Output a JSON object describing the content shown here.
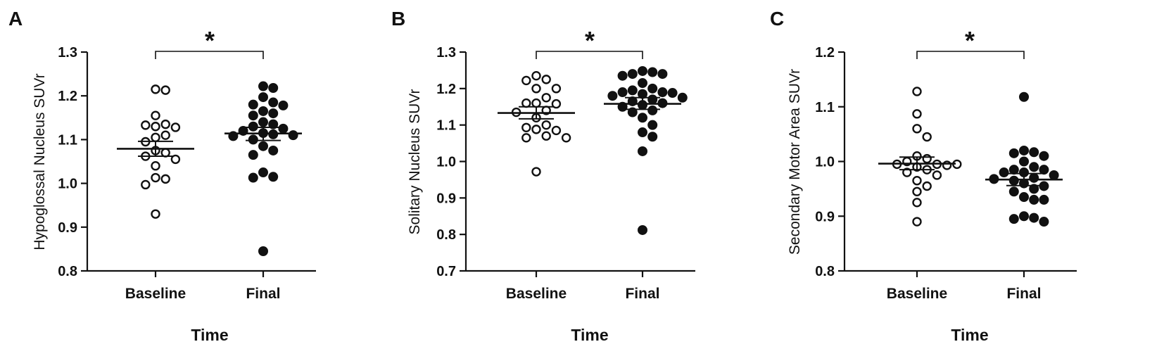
{
  "figure": {
    "panels": [
      {
        "letter": "A",
        "ylabel": "Hypoglossal Nucleus SUVr",
        "xlabel": "Time",
        "significance": "*"
      },
      {
        "letter": "B",
        "ylabel": "Solitary Nucleus SUVr",
        "xlabel": "Time",
        "significance": "*"
      },
      {
        "letter": "C",
        "ylabel": "Secondary Motor Area SUVr",
        "xlabel": "Time",
        "significance": "*"
      }
    ]
  },
  "chart_data": [
    {
      "type": "scatter",
      "title": "",
      "panel_label": "A",
      "xlabel": "Time",
      "ylabel": "Hypoglossal Nucleus SUVr",
      "categories": [
        "Baseline",
        "Final"
      ],
      "ylim": [
        0.8,
        1.3
      ],
      "yticks": [
        "0.8",
        "0.9",
        "1.0",
        "1.1",
        "1.2",
        "1.3"
      ],
      "grid": false,
      "significance": {
        "label": "*",
        "between": [
          "Baseline",
          "Final"
        ]
      },
      "series": [
        {
          "category": "Baseline",
          "marker": "open-circle",
          "mean": 1.079,
          "sem_low": 1.062,
          "sem_high": 1.096,
          "values": [
            1.215,
            1.213,
            1.155,
            1.135,
            1.133,
            1.13,
            1.128,
            1.11,
            1.105,
            1.095,
            1.075,
            1.07,
            1.062,
            1.055,
            1.04,
            1.013,
            1.01,
            0.997,
            0.93
          ]
        },
        {
          "category": "Final",
          "marker": "filled-circle",
          "mean": 1.114,
          "sem_low": 1.098,
          "sem_high": 1.128,
          "values": [
            1.222,
            1.218,
            1.197,
            1.185,
            1.18,
            1.178,
            1.165,
            1.16,
            1.155,
            1.14,
            1.135,
            1.13,
            1.125,
            1.12,
            1.115,
            1.112,
            1.11,
            1.108,
            1.1,
            1.085,
            1.075,
            1.065,
            1.025,
            1.015,
            1.013,
            0.845
          ]
        }
      ]
    },
    {
      "type": "scatter",
      "title": "",
      "panel_label": "B",
      "xlabel": "Time",
      "ylabel": "Solitary Nucleus SUVr",
      "categories": [
        "Baseline",
        "Final"
      ],
      "ylim": [
        0.7,
        1.3
      ],
      "yticks": [
        "0.7",
        "0.8",
        "0.9",
        "1.0",
        "1.1",
        "1.2",
        "1.3"
      ],
      "grid": false,
      "significance": {
        "label": "*",
        "between": [
          "Baseline",
          "Final"
        ]
      },
      "series": [
        {
          "category": "Baseline",
          "marker": "open-circle",
          "mean": 1.133,
          "sem_low": 1.117,
          "sem_high": 1.15,
          "values": [
            1.235,
            1.225,
            1.222,
            1.2,
            1.2,
            1.175,
            1.16,
            1.158,
            1.16,
            1.14,
            1.135,
            1.12,
            1.1,
            1.093,
            1.085,
            1.088,
            1.07,
            1.065,
            1.065,
            0.972
          ]
        },
        {
          "category": "Final",
          "marker": "filled-circle",
          "mean": 1.158,
          "sem_low": 1.143,
          "sem_high": 1.175,
          "values": [
            1.245,
            1.248,
            1.24,
            1.24,
            1.235,
            1.215,
            1.2,
            1.195,
            1.19,
            1.19,
            1.188,
            1.185,
            1.175,
            1.18,
            1.17,
            1.165,
            1.16,
            1.155,
            1.15,
            1.14,
            1.135,
            1.12,
            1.1,
            1.08,
            1.068,
            1.028,
            0.812
          ]
        }
      ]
    },
    {
      "type": "scatter",
      "title": "",
      "panel_label": "C",
      "xlabel": "Time",
      "ylabel": "Secondary Motor Area SUVr",
      "categories": [
        "Baseline",
        "Final"
      ],
      "ylim": [
        0.8,
        1.2
      ],
      "yticks": [
        "0.8",
        "0.9",
        "1.0",
        "1.1",
        "1.2"
      ],
      "grid": false,
      "significance": {
        "label": "*",
        "between": [
          "Baseline",
          "Final"
        ]
      },
      "series": [
        {
          "category": "Baseline",
          "marker": "open-circle",
          "mean": 0.996,
          "sem_low": 0.985,
          "sem_high": 1.008,
          "values": [
            1.128,
            1.087,
            1.06,
            1.045,
            1.01,
            1.005,
            1.0,
            0.995,
            0.995,
            0.995,
            0.993,
            0.99,
            0.985,
            0.98,
            0.975,
            0.965,
            0.955,
            0.945,
            0.925,
            0.89
          ]
        },
        {
          "category": "Final",
          "marker": "filled-circle",
          "mean": 0.967,
          "sem_low": 0.956,
          "sem_high": 0.978,
          "values": [
            1.118,
            1.02,
            1.017,
            1.015,
            1.01,
            1.0,
            0.99,
            0.985,
            0.985,
            0.98,
            0.98,
            0.975,
            0.97,
            0.968,
            0.965,
            0.96,
            0.955,
            0.95,
            0.945,
            0.935,
            0.93,
            0.93,
            0.9,
            0.897,
            0.895,
            0.89
          ]
        }
      ]
    }
  ]
}
